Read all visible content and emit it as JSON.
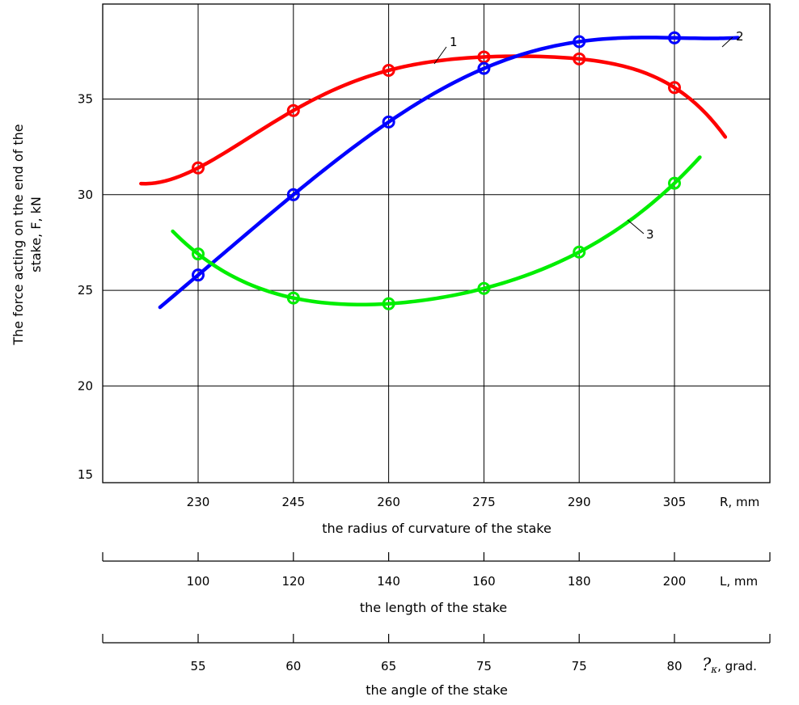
{
  "chart_data": {
    "type": "line",
    "ylabel_line1": "The force acting on the end of the",
    "ylabel_line2": "stake, F, kN",
    "ylim": [
      14,
      40
    ],
    "y_ticks": [
      "15",
      "20",
      "25",
      "30",
      "35"
    ],
    "y_tick_values": [
      15,
      20,
      25,
      30,
      35
    ],
    "x_ticks": [
      230,
      245,
      260,
      275,
      290,
      305
    ],
    "grid": true,
    "axes": [
      {
        "unit": "R, mm",
        "label": "the radius of curvature of the stake",
        "ticks": [
          "230",
          "245",
          "260",
          "275",
          "290",
          "305"
        ]
      },
      {
        "unit": "L, mm",
        "label": "the length of the stake",
        "ticks": [
          "100",
          "120",
          "140",
          "160",
          "180",
          "200"
        ]
      },
      {
        "unit_symbol": "?",
        "unit_sub": "κ",
        "unit_rest": ", grad.",
        "label": "the angle of the stake",
        "ticks": [
          "55",
          "60",
          "65",
          "75",
          "75",
          "80"
        ]
      }
    ],
    "series": [
      {
        "name": "1",
        "color": "#ff0000",
        "points": [
          [
            230,
            31.4
          ],
          [
            245,
            34.4
          ],
          [
            260,
            36.5
          ],
          [
            275,
            37.2
          ],
          [
            290,
            37.1
          ],
          [
            305,
            35.6
          ]
        ],
        "curve_range": [
          221,
          313
        ]
      },
      {
        "name": "2",
        "color": "#0000ff",
        "points": [
          [
            230,
            25.8
          ],
          [
            245,
            30.0
          ],
          [
            260,
            33.8
          ],
          [
            275,
            36.6
          ],
          [
            290,
            38.0
          ],
          [
            305,
            38.2
          ]
        ],
        "curve_range": [
          224,
          315
        ]
      },
      {
        "name": "3",
        "color": "#00ee00",
        "points": [
          [
            230,
            26.9
          ],
          [
            245,
            24.6
          ],
          [
            260,
            24.3
          ],
          [
            275,
            25.1
          ],
          [
            290,
            27.0
          ],
          [
            305,
            30.6
          ]
        ],
        "curve_range": [
          226,
          309
        ]
      }
    ]
  }
}
